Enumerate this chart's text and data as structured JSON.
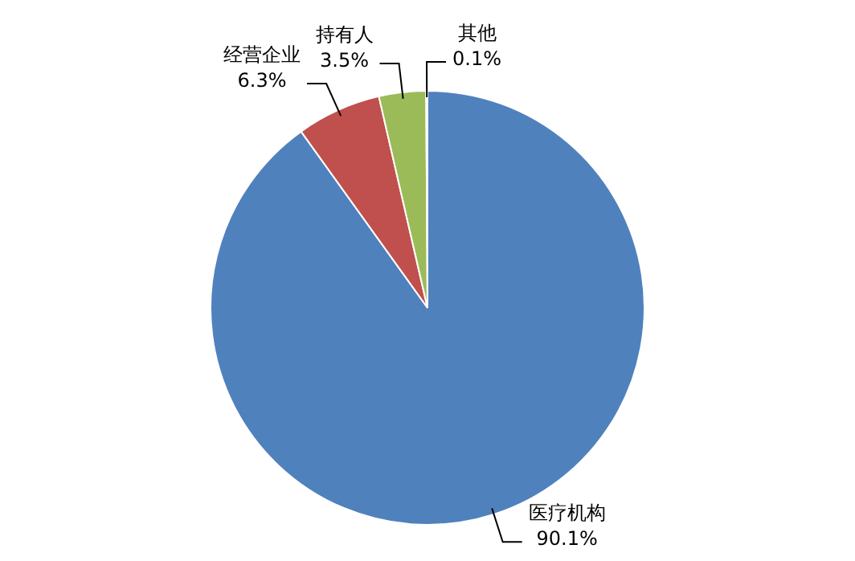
{
  "chart_data": {
    "type": "pie",
    "categories": [
      "医疗机构",
      "经营企业",
      "持有人",
      "其他"
    ],
    "values": [
      90.1,
      6.3,
      3.5,
      0.1
    ],
    "colors": [
      "#4f81bd",
      "#c0504d",
      "#9bbb59",
      "#8064a2"
    ],
    "value_labels": [
      "90.1%",
      "6.3%",
      "3.5%",
      "0.1%"
    ],
    "legend": false
  }
}
